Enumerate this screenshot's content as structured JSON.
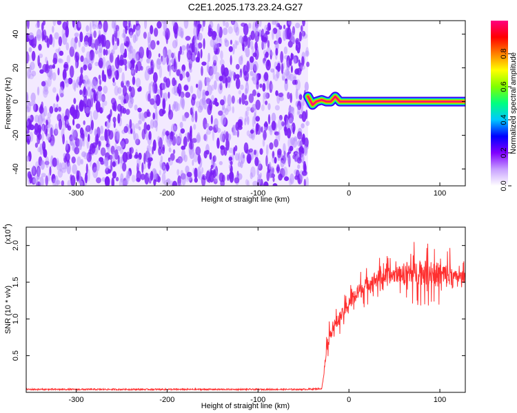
{
  "chart_data": [
    {
      "type": "heatmap",
      "title": "C2E1.2025.173.23.24.G27",
      "xlabel": "Height of straight line (km)",
      "ylabel": "Frequency (Hz)",
      "xlim": [
        -355,
        128
      ],
      "ylim": [
        -50,
        48
      ],
      "xticks": [
        -300,
        -200,
        -100,
        0,
        100
      ],
      "yticks": [
        -40,
        -20,
        0,
        20,
        40
      ],
      "colorbar": {
        "label": "Normalized spectral amplitude",
        "range": [
          0.0,
          1.0
        ],
        "ticks": [
          0.0,
          0.2,
          0.4,
          0.6,
          0.8
        ],
        "colormap": [
          "#ffffff",
          "#c8a0ff",
          "#8000ff",
          "#0000ff",
          "#00c8ff",
          "#00ff80",
          "#80ff00",
          "#ffff00",
          "#ff8000",
          "#ff0000",
          "#ff0080"
        ]
      },
      "noise_region_x": [
        -355,
        -45
      ],
      "noise_amplitude_range": [
        0.0,
        0.15
      ],
      "signal_line": {
        "frequency_hz": [
          [
            -45,
            3
          ],
          [
            -43,
            1
          ],
          [
            -40,
            -2
          ],
          [
            -36,
            0
          ],
          [
            -30,
            1
          ],
          [
            -25,
            0
          ],
          [
            -20,
            0
          ],
          [
            -15,
            3
          ],
          [
            -10,
            0
          ],
          [
            0,
            0
          ],
          [
            50,
            0
          ],
          [
            100,
            0
          ],
          [
            128,
            0
          ]
        ],
        "peak_amplitude": 1.0
      }
    },
    {
      "type": "line",
      "xlabel": "Height of straight line (km)",
      "ylabel": "SNR (10 * v/v)",
      "yscale_label": "(x10",
      "yscale_exp": "4",
      "xlim": [
        -355,
        128
      ],
      "ylim": [
        0,
        2.25
      ],
      "xticks": [
        -300,
        -200,
        -100,
        0,
        100
      ],
      "yticks": [
        0.5,
        1.0,
        1.5,
        2.0
      ],
      "color": "#ff3030",
      "series": [
        {
          "values": [
            [
              -355,
              0.04
            ],
            [
              -300,
              0.04
            ],
            [
              -250,
              0.04
            ],
            [
              -200,
              0.04
            ],
            [
              -150,
              0.04
            ],
            [
              -100,
              0.04
            ],
            [
              -50,
              0.04
            ],
            [
              -30,
              0.05
            ],
            [
              -28,
              0.2
            ],
            [
              -25,
              0.6
            ],
            [
              -20,
              0.82
            ],
            [
              -15,
              0.93
            ],
            [
              -10,
              1.02
            ],
            [
              -5,
              1.1
            ],
            [
              0,
              1.22
            ],
            [
              10,
              1.36
            ],
            [
              20,
              1.47
            ],
            [
              30,
              1.55
            ],
            [
              40,
              1.58
            ],
            [
              50,
              1.6
            ],
            [
              60,
              1.62
            ],
            [
              70,
              1.63
            ],
            [
              80,
              1.63
            ],
            [
              90,
              1.62
            ],
            [
              100,
              1.6
            ],
            [
              110,
              1.58
            ],
            [
              128,
              1.57
            ]
          ]
        }
      ]
    }
  ]
}
